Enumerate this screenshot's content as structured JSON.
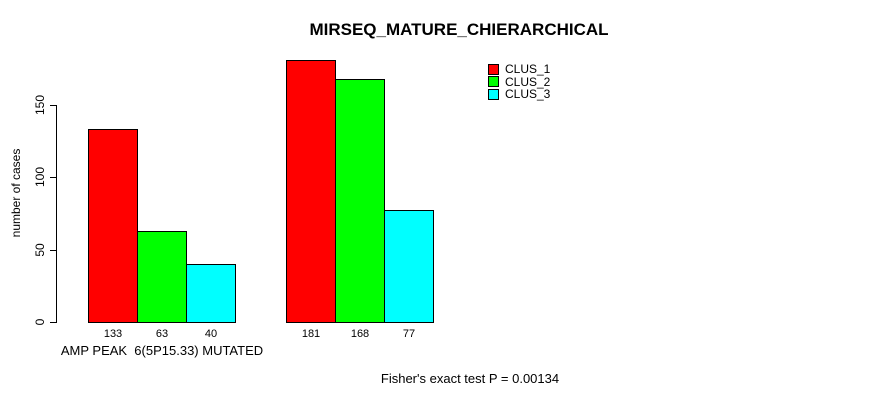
{
  "chart_data": {
    "type": "bar",
    "title": "MIRSEQ_MATURE_CHIERARCHICAL",
    "ylabel": "number of cases",
    "xlabel": "",
    "ylim": [
      0,
      150
    ],
    "yticks": [
      0,
      50,
      100,
      150
    ],
    "categories": [
      "AMP PEAK  6(5P15.33) MUTATED",
      ""
    ],
    "series": [
      {
        "name": "CLUS_1",
        "color": "#FF0000",
        "values": [
          133,
          181
        ]
      },
      {
        "name": "CLUS_2",
        "color": "#00FF00",
        "values": [
          63,
          168
        ]
      },
      {
        "name": "CLUS_3",
        "color": "#00FFFF",
        "values": [
          40,
          77
        ]
      }
    ],
    "value_labels_shown": true,
    "legend_position": "top-right",
    "grid": false,
    "bar_border_color": "#000000",
    "background_color": "#FFFFFF",
    "annotation": "Fisher's exact test P = 0.00134"
  }
}
